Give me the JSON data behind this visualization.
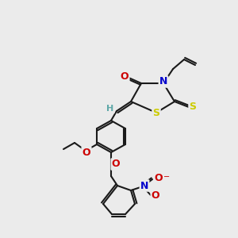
{
  "bg_color": "#ebebeb",
  "bond_color": "#1a1a1a",
  "bond_width": 1.5,
  "atom_colors": {
    "O": "#cc0000",
    "N": "#0000cc",
    "S": "#cccc00",
    "H": "#5fa8a8",
    "C": "#1a1a1a"
  },
  "font_size": 9,
  "fig_size": [
    3.0,
    3.0
  ],
  "dpi": 100
}
